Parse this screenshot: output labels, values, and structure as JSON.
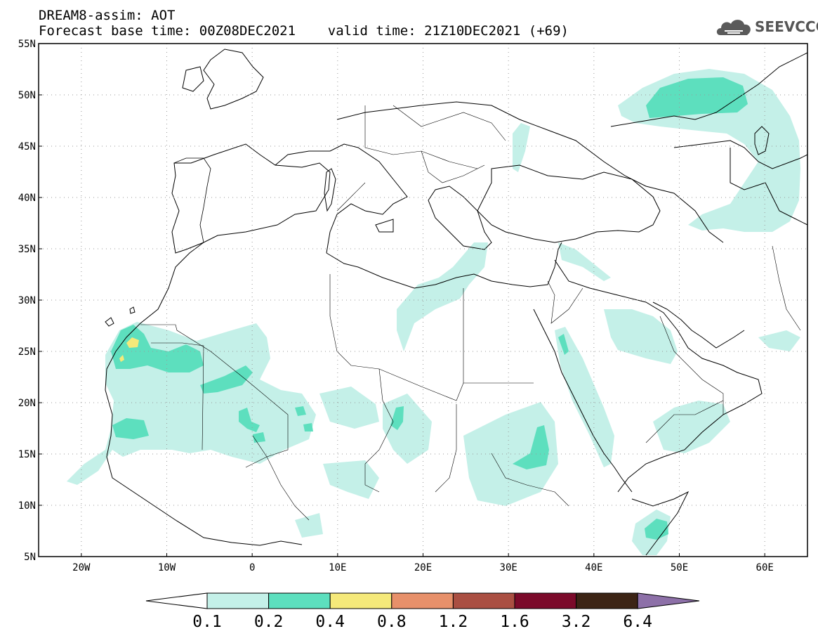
{
  "header": {
    "line1": "DREAM8-assim: AOT",
    "line2": "Forecast base time: 00Z08DEC2021    valid time: 21Z10DEC2021 (+69)"
  },
  "logo": {
    "text": "SEEVCCC",
    "icon": "cloud-icon"
  },
  "map": {
    "lon_range": [
      -25,
      65
    ],
    "lat_range": [
      5,
      55
    ],
    "lon_ticks": [
      {
        "value": -20,
        "label": "20W"
      },
      {
        "value": -10,
        "label": "10W"
      },
      {
        "value": 0,
        "label": "0"
      },
      {
        "value": 10,
        "label": "10E"
      },
      {
        "value": 20,
        "label": "20E"
      },
      {
        "value": 30,
        "label": "30E"
      },
      {
        "value": 40,
        "label": "40E"
      },
      {
        "value": 50,
        "label": "50E"
      },
      {
        "value": 60,
        "label": "60E"
      }
    ],
    "lat_ticks": [
      {
        "value": 55,
        "label": "55N"
      },
      {
        "value": 50,
        "label": "50N"
      },
      {
        "value": 45,
        "label": "45N"
      },
      {
        "value": 40,
        "label": "40N"
      },
      {
        "value": 35,
        "label": "35N"
      },
      {
        "value": 30,
        "label": "30N"
      },
      {
        "value": 25,
        "label": "25N"
      },
      {
        "value": 20,
        "label": "20N"
      },
      {
        "value": 15,
        "label": "15N"
      },
      {
        "value": 10,
        "label": "10N"
      },
      {
        "value": 5,
        "label": "5N"
      }
    ],
    "grid": "dotted"
  },
  "colorbar": {
    "labels": [
      "0.1",
      "0.2",
      "0.4",
      "0.8",
      "1.2",
      "1.6",
      "3.2",
      "6.4"
    ],
    "colors": [
      "#ffffff",
      "#c4f0e8",
      "#5ddfbe",
      "#f5e97a",
      "#e7906a",
      "#aa4f42",
      "#7b0a2a",
      "#3c2415",
      "#8d70a8"
    ]
  }
}
